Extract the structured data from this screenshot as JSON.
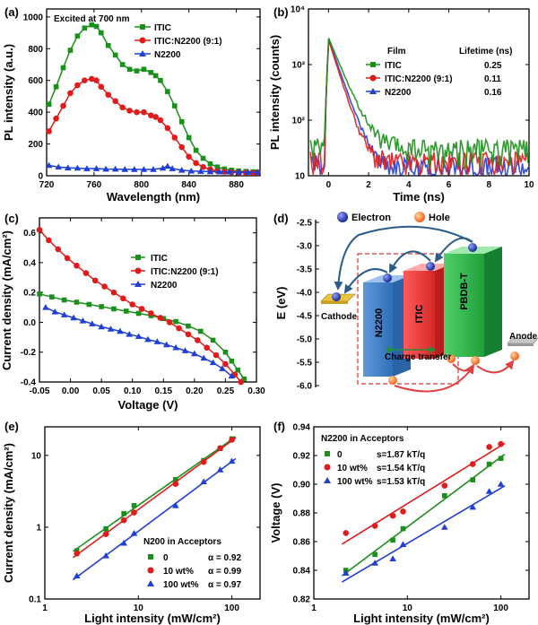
{
  "colors": {
    "green": "#1a8f1a",
    "red": "#e01b1b",
    "blue": "#1f3fd6",
    "axis": "#000000"
  },
  "chart_data": [
    {
      "panel": "(a)",
      "type": "line",
      "xlabel": "Wavelength (nm)",
      "ylabel": "PL intensity (a.u.)",
      "xlim": [
        720,
        900
      ],
      "ylim": [
        0,
        1050
      ],
      "xticks": [
        720,
        760,
        800,
        840,
        880
      ],
      "yticks": [
        0,
        200,
        400,
        600,
        800,
        1000
      ],
      "annotation": "Excited at 700 nm",
      "legend": "top-right",
      "series": [
        {
          "name": "ITIC",
          "color": "green",
          "marker": "square",
          "x": [
            722,
            728,
            734,
            740,
            746,
            752,
            758,
            762,
            766,
            772,
            778,
            784,
            790,
            796,
            802,
            808,
            812,
            816,
            822,
            828,
            834,
            840,
            846,
            852,
            858,
            864,
            870,
            876,
            882,
            888,
            894,
            898
          ],
          "y": [
            450,
            560,
            680,
            790,
            880,
            930,
            950,
            940,
            900,
            820,
            760,
            700,
            670,
            660,
            670,
            650,
            630,
            600,
            530,
            440,
            340,
            240,
            160,
            110,
            75,
            55,
            42,
            35,
            30,
            27,
            25,
            24
          ]
        },
        {
          "name": "ITIC:N2200 (9:1)",
          "color": "red",
          "marker": "circle",
          "x": [
            722,
            728,
            734,
            740,
            746,
            752,
            758,
            762,
            766,
            772,
            778,
            784,
            790,
            796,
            802,
            808,
            812,
            816,
            822,
            828,
            834,
            840,
            846,
            852,
            858,
            864,
            870,
            876,
            882,
            888,
            894,
            898
          ],
          "y": [
            280,
            360,
            440,
            520,
            570,
            600,
            610,
            600,
            560,
            510,
            470,
            430,
            410,
            400,
            400,
            380,
            370,
            350,
            300,
            240,
            180,
            120,
            80,
            55,
            40,
            30,
            25,
            22,
            20,
            19,
            18,
            18
          ]
        },
        {
          "name": "N2200",
          "color": "blue",
          "marker": "triangle",
          "x": [
            722,
            730,
            738,
            746,
            754,
            762,
            770,
            778,
            786,
            794,
            802,
            810,
            818,
            822,
            826,
            834,
            842,
            850,
            858,
            866,
            874,
            882,
            890,
            898
          ],
          "y": [
            65,
            55,
            50,
            48,
            45,
            45,
            42,
            42,
            40,
            40,
            40,
            40,
            48,
            60,
            45,
            35,
            30,
            28,
            26,
            25,
            24,
            23,
            22,
            22
          ]
        }
      ]
    },
    {
      "panel": "(b)",
      "type": "line",
      "yscale": "log",
      "xlabel": "Time (ns)",
      "ylabel": "PL intensity (counts)",
      "xlim": [
        -1,
        10
      ],
      "ylim": [
        10,
        10000
      ],
      "xticks": [
        0,
        2,
        4,
        6,
        8,
        10
      ],
      "yticks": [
        10,
        100,
        1000,
        10000
      ],
      "ytick_labels": [
        "10",
        "10²",
        "10³",
        "10⁴"
      ],
      "legend_header": {
        "film": "Film",
        "lifetime": "Lifetime (ns)"
      },
      "lifetimes": [
        "0.25",
        "0.11",
        "0.16"
      ],
      "series": [
        {
          "name": "ITIC",
          "color": "green",
          "peak": 3000,
          "decay_ns": 0.5,
          "floor": 25
        },
        {
          "name": "ITIC:N2200 (9:1)",
          "color": "red",
          "peak": 2800,
          "decay_ns": 0.38,
          "floor": 15
        },
        {
          "name": "N2200",
          "color": "blue",
          "peak": 2900,
          "decay_ns": 0.42,
          "floor": 12
        }
      ]
    },
    {
      "panel": "(c)",
      "type": "line",
      "xlabel": "Voltage (V)",
      "ylabel": "Current density (mA/cm²)",
      "xlim": [
        -0.05,
        0.3
      ],
      "ylim": [
        -0.4,
        0.7
      ],
      "xticks": [
        -0.05,
        0.0,
        0.05,
        0.1,
        0.15,
        0.2,
        0.25,
        0.3
      ],
      "xtick_labels": [
        "-0.05",
        "0.00",
        "0.05",
        "0.10",
        "0.15",
        "0.20",
        "0.25",
        "0.30"
      ],
      "yticks": [
        -0.4,
        -0.2,
        0.0,
        0.2,
        0.4,
        0.6
      ],
      "ytick_labels": [
        "-0.4",
        "-0.2",
        "0.0",
        "0.2",
        "0.4",
        "0.6"
      ],
      "legend": "top-right",
      "series": [
        {
          "name": "ITIC",
          "color": "green",
          "marker": "square",
          "x": [
            -0.05,
            -0.03,
            -0.01,
            0.01,
            0.03,
            0.05,
            0.07,
            0.09,
            0.11,
            0.13,
            0.15,
            0.17,
            0.19,
            0.21,
            0.23,
            0.25,
            0.26,
            0.27,
            0.28
          ],
          "y": [
            0.19,
            0.17,
            0.15,
            0.135,
            0.12,
            0.105,
            0.09,
            0.075,
            0.06,
            0.045,
            0.025,
            0.005,
            -0.025,
            -0.06,
            -0.12,
            -0.2,
            -0.26,
            -0.32,
            -0.38
          ]
        },
        {
          "name": "ITIC:N2200 (9:1)",
          "color": "red",
          "marker": "circle",
          "x": [
            -0.05,
            -0.035,
            -0.02,
            -0.005,
            0.01,
            0.025,
            0.04,
            0.055,
            0.07,
            0.085,
            0.1,
            0.115,
            0.13,
            0.145,
            0.16,
            0.175,
            0.19,
            0.205,
            0.22,
            0.235,
            0.25,
            0.265,
            0.275
          ],
          "y": [
            0.62,
            0.55,
            0.49,
            0.43,
            0.38,
            0.33,
            0.28,
            0.24,
            0.2,
            0.16,
            0.12,
            0.09,
            0.06,
            0.03,
            0.0,
            -0.04,
            -0.08,
            -0.12,
            -0.17,
            -0.22,
            -0.28,
            -0.35,
            -0.4
          ]
        },
        {
          "name": "N2200",
          "color": "blue",
          "marker": "triangle",
          "x": [
            -0.04,
            -0.025,
            -0.01,
            0.005,
            0.02,
            0.035,
            0.05,
            0.065,
            0.08,
            0.095,
            0.11,
            0.125,
            0.14,
            0.155,
            0.17,
            0.185,
            0.2,
            0.215,
            0.23,
            0.245,
            0.26
          ],
          "y": [
            0.1,
            0.07,
            0.05,
            0.03,
            0.01,
            -0.01,
            -0.03,
            -0.045,
            -0.06,
            -0.08,
            -0.095,
            -0.115,
            -0.13,
            -0.15,
            -0.17,
            -0.19,
            -0.21,
            -0.24,
            -0.27,
            -0.31,
            -0.36
          ]
        }
      ]
    },
    {
      "panel": "(d)",
      "type": "diagram",
      "ylabel": "E (eV)",
      "ylim": [
        -6.0,
        -2.5
      ],
      "yticks": [
        -6.0,
        -5.5,
        -5.0,
        -4.5,
        -4.0,
        -3.5,
        -3.0,
        -2.5
      ],
      "ytick_labels": [
        "-6.0",
        "-5.5",
        "-5.0",
        "-4.5",
        "-4.0",
        "-3.5",
        "-3.0",
        "-2.5"
      ],
      "electron_label": "Electron",
      "hole_label": "Hole",
      "materials": [
        "N2200",
        "ITIC",
        "PBDB-T"
      ],
      "cathode_label": "Cathode",
      "anode_label": "Anode",
      "transfer_label": "Charge transfer"
    },
    {
      "panel": "(e)",
      "type": "scatter",
      "xscale": "log",
      "yscale": "log",
      "xlabel": "Light intensity (mW/cm²)",
      "ylabel": "Current density (mA/cm²)",
      "xlim": [
        1,
        200
      ],
      "ylim": [
        0.1,
        25
      ],
      "xticks": [
        1,
        10,
        100
      ],
      "yticks": [
        0.1,
        1,
        10
      ],
      "ytick_labels": [
        "0.1",
        "1",
        "10"
      ],
      "legend_title": "N200 in Acceptors",
      "series": [
        {
          "name": "0",
          "alpha": "α = 0.92",
          "color": "green",
          "marker": "square",
          "x": [
            2.2,
            4.5,
            7,
            9,
            25,
            50,
            75,
            100
          ],
          "y": [
            0.47,
            0.95,
            1.55,
            2.0,
            4.6,
            8.5,
            12.5,
            17.0
          ]
        },
        {
          "name": "10 wt%",
          "alpha": "α = 0.99",
          "color": "red",
          "marker": "circle",
          "x": [
            2.2,
            4.5,
            7,
            9,
            25,
            50,
            75,
            100
          ],
          "y": [
            0.43,
            0.8,
            1.25,
            1.6,
            4.0,
            8.1,
            12.6,
            16.5
          ]
        },
        {
          "name": "100 wt%",
          "alpha": "α = 0.97",
          "color": "blue",
          "marker": "triangle",
          "x": [
            2.2,
            4.5,
            7,
            9,
            25,
            50,
            75,
            100
          ],
          "y": [
            0.21,
            0.4,
            0.6,
            0.82,
            2.0,
            4.3,
            6.3,
            8.3
          ]
        }
      ]
    },
    {
      "panel": "(f)",
      "type": "scatter",
      "xscale": "log",
      "xlabel": "Light intensity (mW/cm²)",
      "ylabel": "Voltage (V)",
      "xlim": [
        1,
        200
      ],
      "ylim": [
        0.82,
        0.94
      ],
      "xticks": [
        1,
        10,
        100
      ],
      "yticks": [
        0.82,
        0.84,
        0.86,
        0.88,
        0.9,
        0.92,
        0.94
      ],
      "ytick_labels": [
        "0.82",
        "0.84",
        "0.86",
        "0.88",
        "0.90",
        "0.92",
        "0.94"
      ],
      "legend_title": "N2200 in Acceptors",
      "series": [
        {
          "name": "0",
          "slope": "s=1.87 kT/q",
          "color": "green",
          "marker": "square",
          "x": [
            2.2,
            4.5,
            7,
            9,
            25,
            50,
            75,
            100
          ],
          "y": [
            0.84,
            0.851,
            0.861,
            0.869,
            0.892,
            0.903,
            0.914,
            0.918
          ]
        },
        {
          "name": "10 wt%",
          "slope": "s=1.54 kT/q",
          "color": "red",
          "marker": "circle",
          "x": [
            2.2,
            4.5,
            7,
            9,
            25,
            50,
            75,
            100
          ],
          "y": [
            0.866,
            0.871,
            0.878,
            0.881,
            0.899,
            0.914,
            0.926,
            0.928
          ]
        },
        {
          "name": "100 wt%",
          "slope": "s=1.53 kT/q",
          "color": "blue",
          "marker": "triangle",
          "x": [
            2.2,
            4.5,
            7,
            9,
            25,
            50,
            75,
            100
          ],
          "y": [
            0.838,
            0.845,
            0.848,
            0.858,
            0.87,
            0.884,
            0.895,
            0.9
          ]
        }
      ]
    }
  ]
}
